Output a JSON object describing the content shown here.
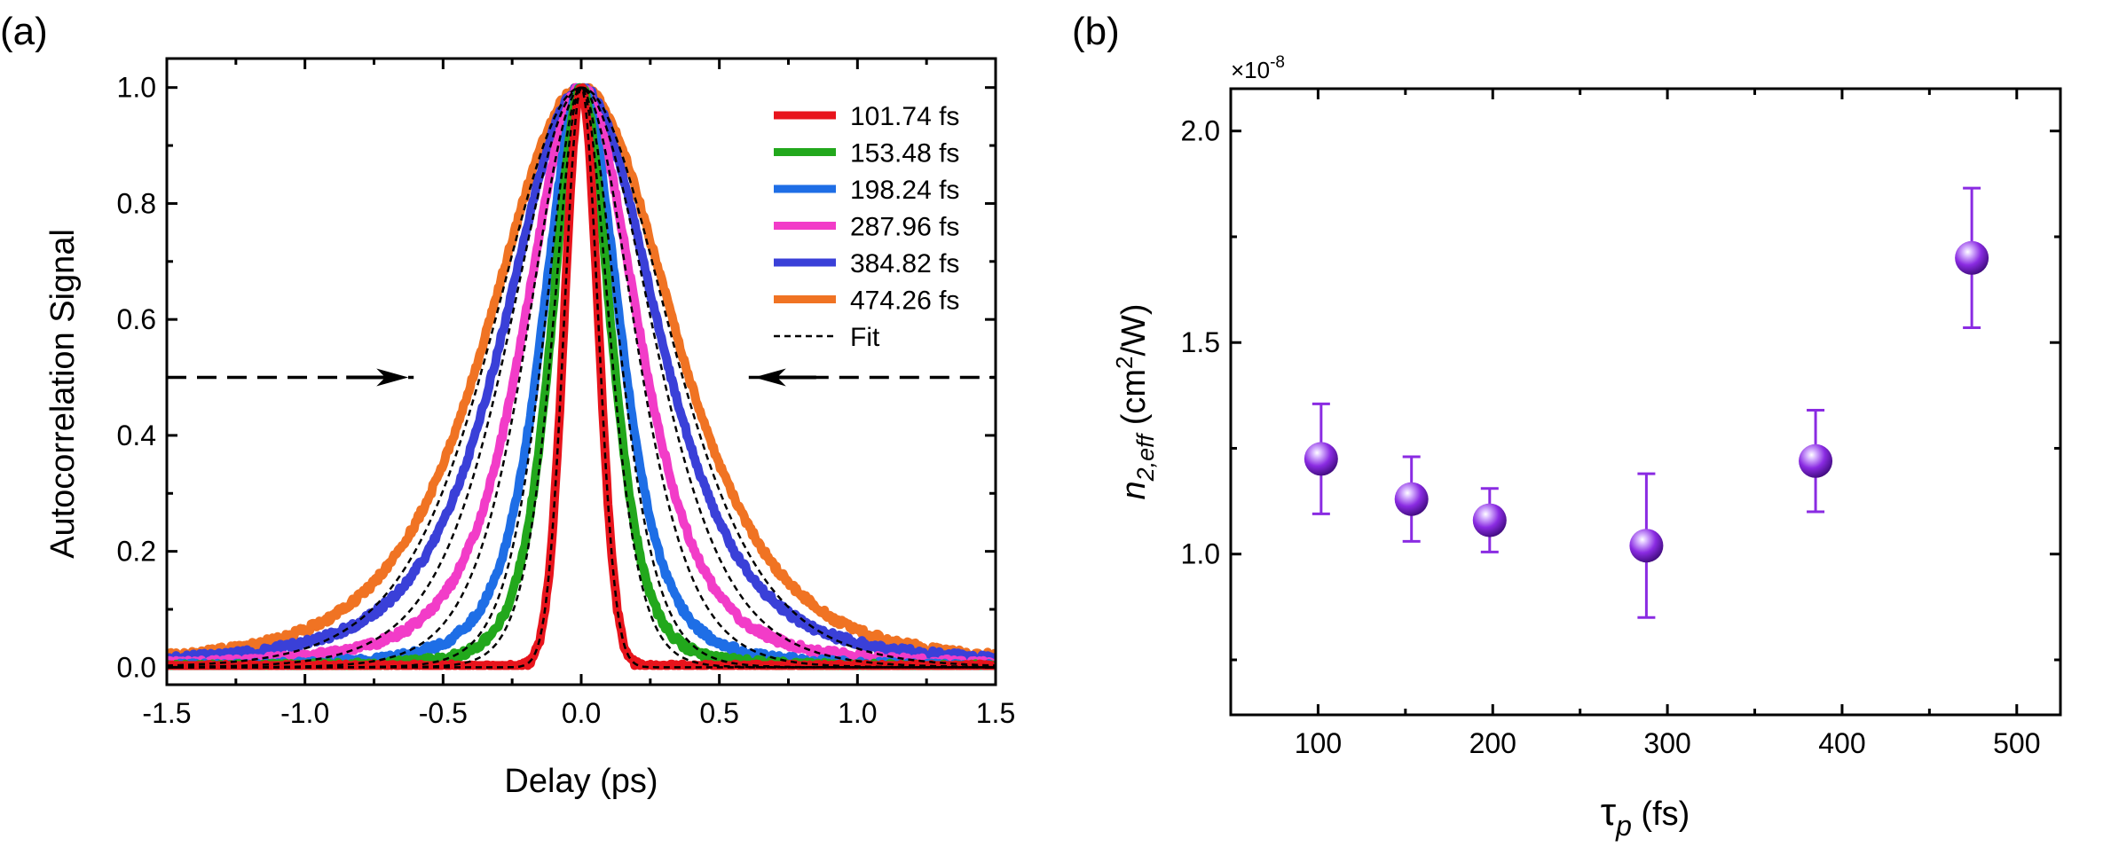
{
  "panel_a": {
    "label": "(a)",
    "xlabel": "Delay (ps)",
    "ylabel": "Autocorrelation Signal",
    "xlim": [
      -1.5,
      1.5
    ],
    "ylim": [
      -0.03,
      1.05
    ],
    "xticks": [
      "-1.5",
      "-1.0",
      "-0.5",
      "0.0",
      "0.5",
      "1.0",
      "1.5"
    ],
    "xtick_values": [
      -1.5,
      -1.0,
      -0.5,
      0.0,
      0.5,
      1.0,
      1.5
    ],
    "yticks": [
      "0.0",
      "0.2",
      "0.4",
      "0.6",
      "0.8",
      "1.0"
    ],
    "ytick_values": [
      0.0,
      0.2,
      0.4,
      0.6,
      0.8,
      1.0
    ],
    "fwhm_marker_level": 0.5,
    "fwhm_marker_arrow_x": [
      -0.6,
      0.6
    ],
    "fit_label": "Fit",
    "fit_color": "#000000",
    "series": [
      {
        "name": "101.74 fs",
        "color": "#e8141c",
        "shape": "gauss",
        "tau": 0.102,
        "wing_gain": 0.0
      },
      {
        "name": "153.48 fs",
        "color": "#22a81c",
        "shape": "sech",
        "tau": 0.153,
        "wing_gain": 0.1
      },
      {
        "name": "198.24 fs",
        "color": "#1e6ee6",
        "shape": "sech",
        "tau": 0.198,
        "wing_gain": 0.14
      },
      {
        "name": "287.96 fs",
        "color": "#f23cc8",
        "shape": "sech",
        "tau": 0.288,
        "wing_gain": 0.15
      },
      {
        "name": "384.82 fs",
        "color": "#3a40d8",
        "shape": "sech",
        "tau": 0.385,
        "wing_gain": 0.16
      },
      {
        "name": "474.26 fs",
        "color": "#f07323",
        "shape": "sech",
        "tau": 0.474,
        "wing_gain": 0.12
      }
    ]
  },
  "chart_data": [
    {
      "type": "line",
      "title": "(a)",
      "xlabel": "Delay (ps)",
      "ylabel": "Autocorrelation Signal",
      "xlim": [
        -1.5,
        1.5
      ],
      "ylim": [
        0.0,
        1.05
      ],
      "legend": "top-right",
      "series": [
        {
          "name": "101.74 fs",
          "fwhm_fs": 101.74,
          "peak": 1.0
        },
        {
          "name": "153.48 fs",
          "fwhm_fs": 153.48,
          "peak": 1.0
        },
        {
          "name": "198.24 fs",
          "fwhm_fs": 198.24,
          "peak": 1.0
        },
        {
          "name": "287.96 fs",
          "fwhm_fs": 287.96,
          "peak": 1.0
        },
        {
          "name": "384.82 fs",
          "fwhm_fs": 384.82,
          "peak": 1.0
        },
        {
          "name": "474.26 fs",
          "fwhm_fs": 474.26,
          "peak": 1.0
        },
        {
          "name": "Fit",
          "style": "dashed"
        }
      ],
      "annotations": [
        "dashed line with arrows at 0.5 marking FWHM"
      ]
    },
    {
      "type": "scatter",
      "title": "(b)",
      "xlabel": "τp (fs)",
      "ylabel": "n2,eff (cm2/W)",
      "y_scale_label": "×10-8",
      "xlim": [
        50,
        525
      ],
      "ylim": [
        0.62,
        2.1
      ],
      "x": [
        101.74,
        153.48,
        198.24,
        287.96,
        384.82,
        474.26
      ],
      "y": [
        1.225,
        1.13,
        1.08,
        1.02,
        1.22,
        1.7
      ],
      "y_err_low": [
        0.13,
        0.1,
        0.075,
        0.17,
        0.12,
        0.165
      ],
      "y_err_high": [
        0.13,
        0.1,
        0.075,
        0.17,
        0.12,
        0.165
      ],
      "marker_color": "#8a2be2"
    }
  ],
  "panel_b": {
    "label": "(b)",
    "xlabel_symbol": "τ",
    "xlabel_sub": "p",
    "xlabel_unit": " (fs)",
    "ylabel_n": "n",
    "ylabel_sub": "2,eff",
    "ylabel_unit_open": " (cm",
    "ylabel_unit_sup": "2",
    "ylabel_unit_close": "/W)",
    "scale_base": "×10",
    "scale_exp": "-8",
    "xlim": [
      50,
      525
    ],
    "ylim": [
      0.62,
      2.1
    ],
    "xticks": [
      "100",
      "200",
      "300",
      "400",
      "500"
    ],
    "xtick_values": [
      100,
      200,
      300,
      400,
      500
    ],
    "yticks": [
      "1.0",
      "1.5",
      "2.0"
    ],
    "ytick_values": [
      1.0,
      1.5,
      2.0
    ],
    "marker_color": "#8a2be2"
  }
}
